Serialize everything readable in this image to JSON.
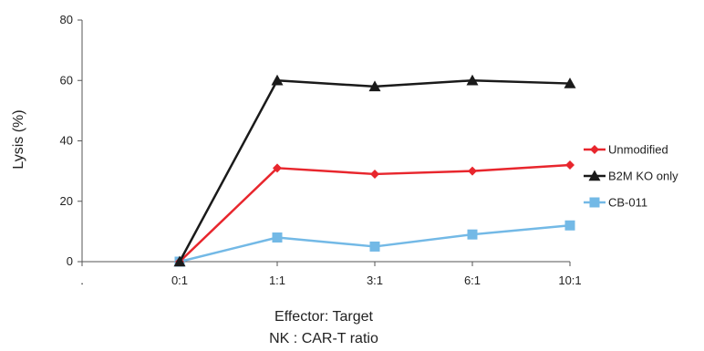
{
  "chart_data": {
    "type": "line",
    "title": "",
    "xlabel_lines": [
      "Effector: Target",
      "NK : CAR-T ratio"
    ],
    "ylabel": "Lysis (%)",
    "categories": [
      ".",
      "0:1",
      "1:1",
      "3:1",
      "6:1",
      "10:1"
    ],
    "ylim": [
      0,
      80
    ],
    "yticks": [
      0,
      20,
      40,
      60,
      80
    ],
    "grid": false,
    "legend_position": "right",
    "series": [
      {
        "name": "Unmodified",
        "color": "#e8262d",
        "marker": "diamond",
        "values": [
          null,
          0,
          31,
          29,
          30,
          32
        ]
      },
      {
        "name": "B2M KO only",
        "color": "#1a1a1a",
        "marker": "triangle",
        "values": [
          null,
          0,
          60,
          58,
          60,
          59
        ]
      },
      {
        "name": "CB-011",
        "color": "#73b9e6",
        "marker": "square",
        "values": [
          null,
          0,
          8,
          5,
          9,
          12
        ]
      }
    ]
  }
}
